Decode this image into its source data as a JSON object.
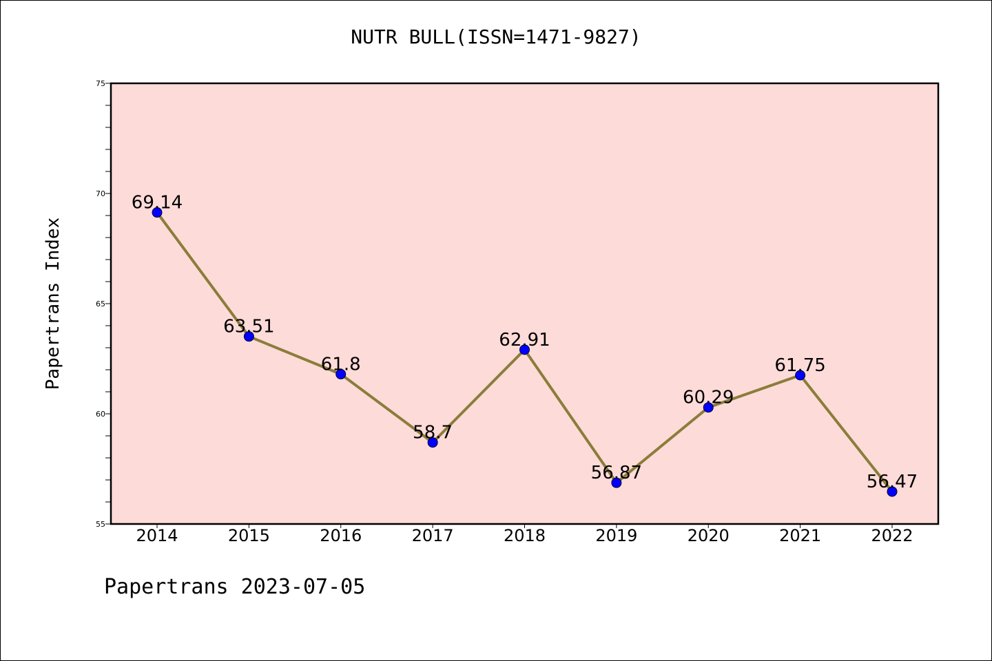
{
  "chart_data": {
    "type": "line",
    "title": "NUTR BULL(ISSN=1471-9827)",
    "xlabel": "",
    "ylabel": "Papertrans Index",
    "categories": [
      "2014",
      "2015",
      "2016",
      "2017",
      "2018",
      "2019",
      "2020",
      "2021",
      "2022"
    ],
    "series": [
      {
        "values": [
          69.14,
          63.51,
          61.8,
          58.7,
          62.91,
          56.87,
          60.29,
          61.75,
          56.47
        ],
        "labels": [
          "69.14",
          "63.51",
          "61.8",
          "58.7",
          "62.91",
          "56.87",
          "60.29",
          "61.75",
          "56.47"
        ]
      }
    ],
    "ylim": [
      55,
      75
    ],
    "yticks": [
      "55",
      "60",
      "65",
      "70",
      "75"
    ],
    "grid": false,
    "colors": {
      "plot_background": "#fddbd9",
      "line": "#8b7d3a",
      "marker": "#0000ff"
    }
  },
  "footer": "Papertrans 2023-07-05"
}
